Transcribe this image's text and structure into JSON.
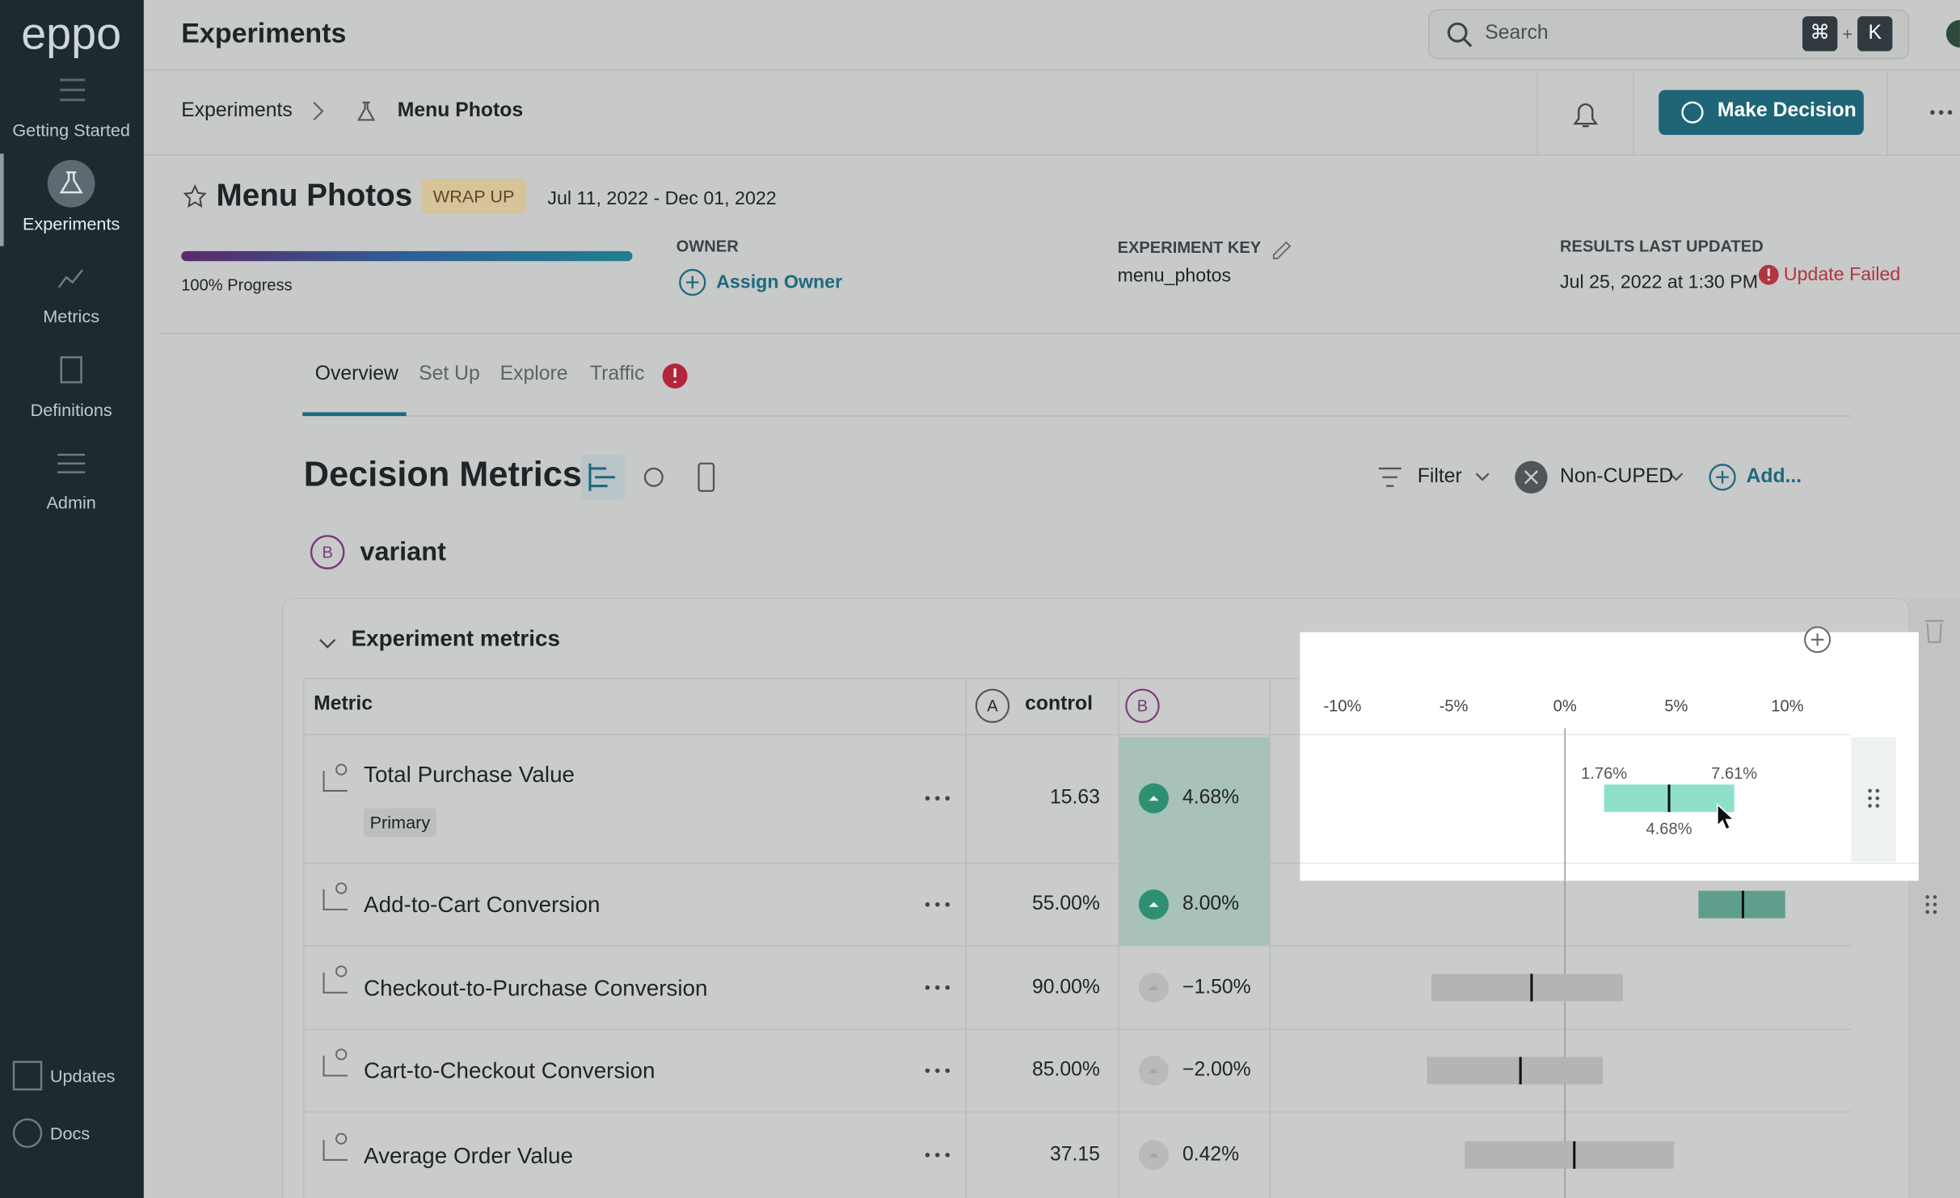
{
  "sidebar": {
    "logo": "eppo",
    "nav": [
      {
        "label": "Getting Started"
      },
      {
        "label": "Experiments"
      },
      {
        "label": "Metrics"
      },
      {
        "label": "Definitions"
      },
      {
        "label": "Admin"
      }
    ],
    "footer": [
      "Updates",
      "Docs"
    ]
  },
  "topbar": {
    "title": "Experiments",
    "search_placeholder": "Search",
    "shortcut": [
      "⌘",
      "+",
      "K"
    ]
  },
  "breadcrumb": [
    "Experiments",
    "Menu Photos"
  ],
  "actions": {
    "make_decision": "Make Decision"
  },
  "experiment": {
    "name": "Menu Photos",
    "status": "WRAP UP",
    "dates": "Jul 11, 2022 - Dec 01, 2022",
    "progress": {
      "value": 100,
      "label": "100% Progress"
    },
    "owner_label": "OWNER",
    "owner_action": "Assign Owner",
    "key_label": "EXPERIMENT KEY",
    "key": "menu_photos",
    "updated_label": "RESULTS LAST UPDATED",
    "updated": "Jul 25, 2022 at 1:30 PM",
    "update_status": "Update Failed"
  },
  "tabs": [
    "Overview",
    "Set Up",
    "Explore",
    "Traffic"
  ],
  "section": {
    "title": "Decision Metrics",
    "filter": "Filter",
    "cuped": "Non-CUPED",
    "add": "Add...",
    "variant_badge": "B",
    "variant": "variant"
  },
  "table": {
    "group": "Experiment metrics",
    "columns": {
      "metric": "Metric",
      "control_badge": "A",
      "control": "control",
      "treatment_badge": "B"
    },
    "axis": {
      "ticks": [
        {
          "value": -10,
          "label": "-10%"
        },
        {
          "value": -5,
          "label": "-5%"
        },
        {
          "value": 0,
          "label": "0%"
        },
        {
          "value": 5,
          "label": "5%"
        },
        {
          "value": 10,
          "label": "10%"
        }
      ]
    },
    "rows": [
      {
        "name": "Total Purchase Value",
        "tag": "Primary",
        "control": "15.63",
        "lift": {
          "value": 4.68,
          "label": "4.68%"
        },
        "ci": [
          1.76,
          7.61
        ],
        "ci_labels": [
          "1.76%",
          "7.61%"
        ],
        "significant": true
      },
      {
        "name": "Add-to-Cart Conversion",
        "control": "55.00%",
        "lift": {
          "value": 8.0,
          "label": "8.00%"
        },
        "ci": [
          6.0,
          9.9
        ],
        "significant": true
      },
      {
        "name": "Checkout-to-Purchase Conversion",
        "control": "90.00%",
        "lift": {
          "value": -1.5,
          "label": "−1.50%"
        },
        "ci": [
          -6.0,
          2.6
        ],
        "significant": false
      },
      {
        "name": "Cart-to-Checkout Conversion",
        "control": "85.00%",
        "lift": {
          "value": -2.0,
          "label": "−2.00%"
        },
        "ci": [
          -6.2,
          1.7
        ],
        "significant": false
      },
      {
        "name": "Average Order Value",
        "control": "37.15",
        "lift": {
          "value": 0.42,
          "label": "0.42%"
        },
        "ci": [
          -4.5,
          4.9
        ],
        "significant": false
      }
    ]
  }
}
